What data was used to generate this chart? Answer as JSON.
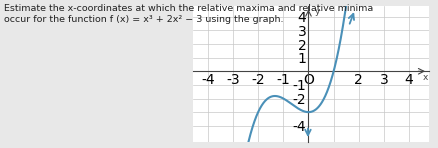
{
  "title_line1": "Estimate the x-coordinates at which the relative maxima and relative minima occur for the function f (x) = x³ + 2x² − 3 using the graph.",
  "title_fontsize": 6.8,
  "xmin": -4.6,
  "xmax": 4.8,
  "ymin": -5.2,
  "ymax": 4.8,
  "xticks": [
    -4,
    -3,
    -2,
    -1,
    0,
    1,
    2,
    3,
    4
  ],
  "yticks": [
    -4,
    -3,
    -2,
    -1,
    0,
    1,
    2,
    3,
    4
  ],
  "xtick_labels": [
    "-4",
    "-3",
    "-2",
    "-1",
    "O",
    "",
    "2",
    "3",
    "4"
  ],
  "ytick_labels": [
    "-4",
    "",
    "-2",
    "-1",
    "",
    "1",
    "2",
    "3",
    "4"
  ],
  "curve_color": "#4a90b8",
  "curve_lw": 1.5,
  "grid_color": "#c8c8c8",
  "axis_color": "#444444",
  "bg_color": "#ffffff",
  "outer_bg": "#e8e8e8",
  "x_label": "x",
  "y_label": "y",
  "tick_fontsize": 6.0,
  "label_fontsize": 6.5
}
